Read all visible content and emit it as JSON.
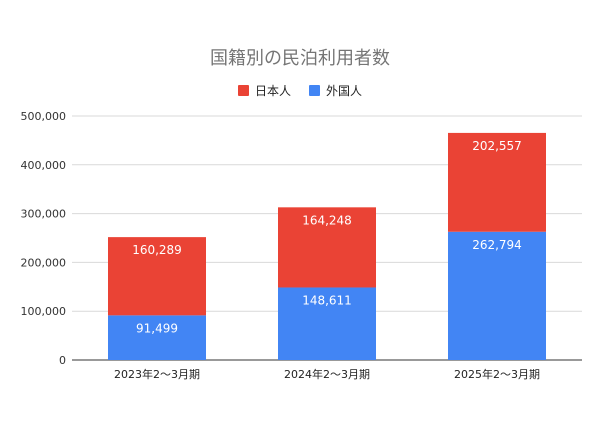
{
  "chart_data": {
    "type": "bar",
    "stacked": true,
    "title": "国籍別の民泊利用者数",
    "categories": [
      "2023年2～3月期",
      "2024年2～3月期",
      "2025年2～3月期"
    ],
    "series": [
      {
        "name": "外国人",
        "values": [
          91499,
          148611,
          262794
        ],
        "color": "#4285f4",
        "labels": [
          "91,499",
          "148,611",
          "262,794"
        ]
      },
      {
        "name": "日本人",
        "values": [
          160289,
          164248,
          202557
        ],
        "color": "#ea4335",
        "labels": [
          "160,289",
          "164,248",
          "202,557"
        ]
      }
    ],
    "legend": [
      {
        "name": "日本人",
        "color": "#ea4335"
      },
      {
        "name": "外国人",
        "color": "#4285f4"
      }
    ],
    "legend_position": "top",
    "ylim": [
      0,
      500000
    ],
    "y_ticks": [
      0,
      100000,
      200000,
      300000,
      400000,
      500000
    ],
    "y_tick_labels": [
      "0",
      "100,000",
      "200,000",
      "300,000",
      "400,000",
      "500,000"
    ],
    "grid": true,
    "xlabel": "",
    "ylabel": ""
  }
}
